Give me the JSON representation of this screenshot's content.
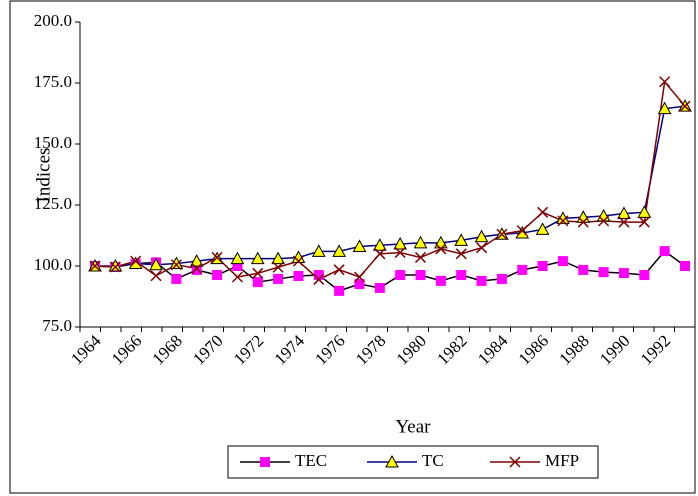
{
  "chart_data": {
    "type": "line",
    "y_label": "Indices",
    "x_label": "Year",
    "categories": [
      "1964",
      null,
      "1966",
      null,
      "1968",
      null,
      "1970",
      null,
      "1972",
      null,
      "1974",
      null,
      "1976",
      null,
      "1978",
      null,
      "1980",
      null,
      "1982",
      null,
      "1984",
      null,
      "1986",
      null,
      "1988",
      null,
      "1990",
      null,
      "1992",
      null
    ],
    "series": [
      {
        "name": "TEC",
        "color": "#000000",
        "marker": "square",
        "marker_color": "#ff00ff",
        "values": [
          100,
          99.6,
          101,
          101.5,
          94.7,
          98.4,
          96.3,
          100,
          93.4,
          94.7,
          95.9,
          96.3,
          89.8,
          92.6,
          91,
          96.3,
          96.3,
          93.9,
          96.3,
          93.9,
          94.7,
          98.4,
          100,
          102,
          98.4,
          97.5,
          97.1,
          96.3,
          106.1,
          100
        ]
      },
      {
        "name": "TC",
        "color": "#000080",
        "marker": "triangle",
        "marker_color": "#ffff00",
        "values": [
          100,
          100,
          101,
          100.5,
          101,
          102,
          103,
          103,
          103,
          103,
          103.5,
          106,
          106,
          108,
          108.5,
          109,
          109.5,
          109.5,
          110.5,
          112,
          113,
          113.5,
          115,
          119.5,
          120,
          120.5,
          121.5,
          122,
          164.5,
          165.5
        ]
      },
      {
        "name": "MFP",
        "color": "#800000",
        "marker": "cross",
        "marker_color": "#800000",
        "values": [
          100,
          99.6,
          102,
          96,
          100.5,
          99,
          103.5,
          95.5,
          97,
          99.5,
          102,
          94.5,
          98.5,
          95.5,
          105,
          105.5,
          103.5,
          107,
          105,
          107.5,
          113,
          114.5,
          122,
          118.5,
          118,
          118.5,
          118,
          118,
          175.5,
          165.5
        ]
      }
    ],
    "ylim": [
      75,
      200
    ],
    "yticks": [
      {
        "value": 75,
        "label": "75.0"
      },
      {
        "value": 100,
        "label": "100.0"
      },
      {
        "value": 125,
        "label": "125.0"
      },
      {
        "value": 150,
        "label": "150.0"
      },
      {
        "value": 175,
        "label": "175.0"
      },
      {
        "value": 200,
        "label": "200.0"
      }
    ],
    "grid": false,
    "legend": "bottom"
  }
}
